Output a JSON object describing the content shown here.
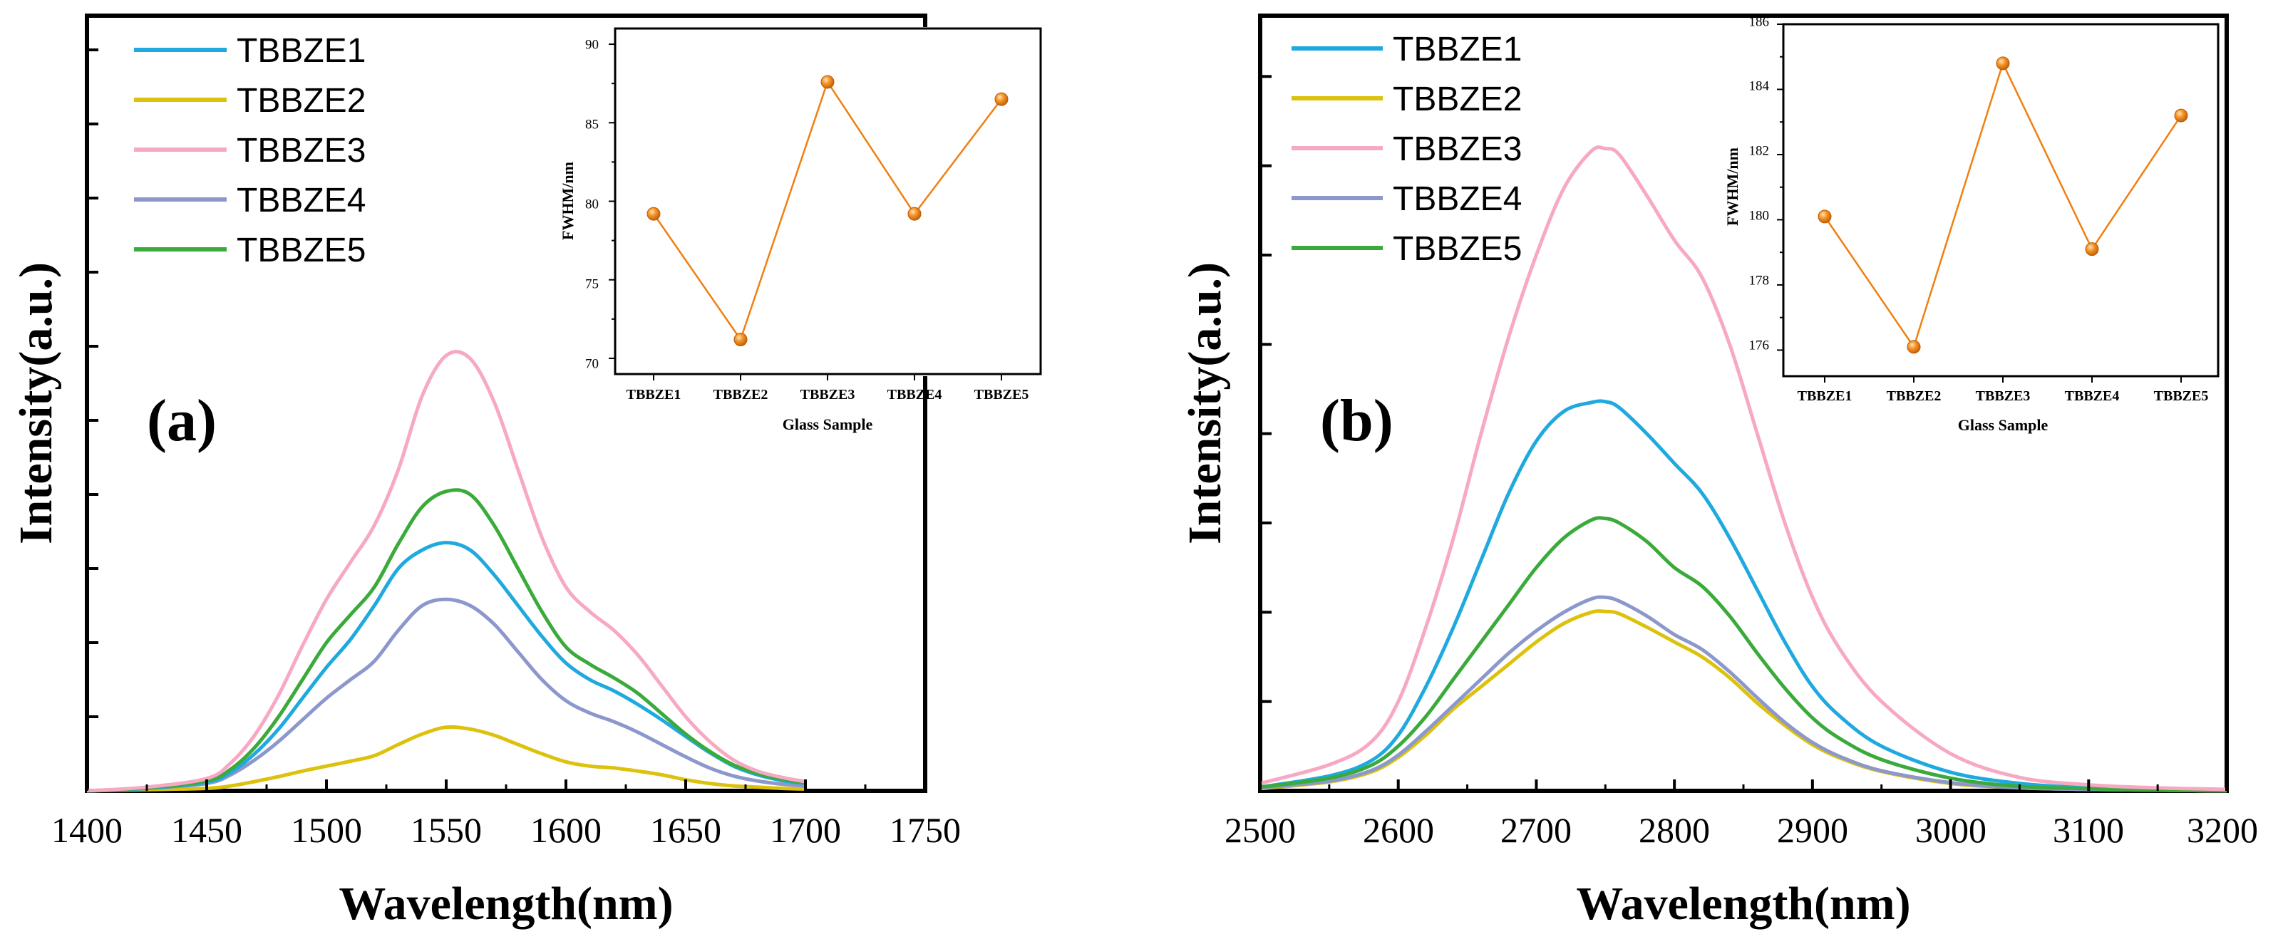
{
  "colors": {
    "TBBZE1": "#1fa9df",
    "TBBZE2": "#dcc20c",
    "TBBZE3": "#f7a9c4",
    "TBBZE4": "#8c97cc",
    "TBBZE5": "#3aaa3a",
    "inset_line": "#f07f10",
    "inset_marker": "#f08a1c"
  },
  "chart_data": [
    {
      "type": "line",
      "panel_label": "(a)",
      "xlabel": "Wavelength(nm)",
      "ylabel": "Intensity(a.u.)",
      "xlim": [
        1400,
        1750
      ],
      "ylim": [
        0,
        1
      ],
      "x_ticks": [
        "1400",
        "1450",
        "1500",
        "1550",
        "1600",
        "1650",
        "1700",
        "1750"
      ],
      "x": [
        1400,
        1425,
        1450,
        1460,
        1470,
        1480,
        1490,
        1500,
        1510,
        1520,
        1530,
        1540,
        1550,
        1560,
        1570,
        1580,
        1590,
        1600,
        1610,
        1620,
        1630,
        1640,
        1650,
        1660,
        1670,
        1680,
        1690,
        1700
      ],
      "series": [
        {
          "name": "TBBZE1",
          "values": [
            0,
            0.004,
            0.014,
            0.03,
            0.06,
            0.1,
            0.15,
            0.2,
            0.245,
            0.3,
            0.36,
            0.39,
            0.402,
            0.39,
            0.35,
            0.3,
            0.25,
            0.207,
            0.18,
            0.162,
            0.14,
            0.115,
            0.088,
            0.062,
            0.04,
            0.026,
            0.017,
            0.012
          ]
        },
        {
          "name": "TBBZE2",
          "values": [
            0,
            0.002,
            0.004,
            0.008,
            0.015,
            0.023,
            0.032,
            0.04,
            0.048,
            0.057,
            0.075,
            0.092,
            0.103,
            0.1,
            0.09,
            0.075,
            0.06,
            0.047,
            0.04,
            0.037,
            0.032,
            0.026,
            0.018,
            0.012,
            0.008,
            0.006,
            0.004,
            0.003
          ]
        },
        {
          "name": "TBBZE3",
          "values": [
            0,
            0.006,
            0.02,
            0.045,
            0.09,
            0.155,
            0.235,
            0.31,
            0.37,
            0.43,
            0.52,
            0.64,
            0.705,
            0.7,
            0.63,
            0.52,
            0.41,
            0.33,
            0.29,
            0.26,
            0.22,
            0.17,
            0.12,
            0.08,
            0.05,
            0.032,
            0.022,
            0.015
          ]
        },
        {
          "name": "TBBZE4",
          "values": [
            0,
            0.004,
            0.012,
            0.026,
            0.05,
            0.08,
            0.115,
            0.15,
            0.18,
            0.21,
            0.26,
            0.3,
            0.31,
            0.3,
            0.27,
            0.225,
            0.18,
            0.146,
            0.126,
            0.112,
            0.095,
            0.075,
            0.055,
            0.037,
            0.024,
            0.016,
            0.011,
            0.008
          ]
        },
        {
          "name": "TBBZE5",
          "values": [
            0,
            0.005,
            0.016,
            0.035,
            0.07,
            0.12,
            0.18,
            0.24,
            0.285,
            0.33,
            0.4,
            0.46,
            0.485,
            0.48,
            0.43,
            0.36,
            0.29,
            0.233,
            0.205,
            0.183,
            0.158,
            0.125,
            0.092,
            0.064,
            0.042,
            0.028,
            0.019,
            0.013
          ]
        }
      ],
      "inset": {
        "type": "line",
        "xlabel": "Glass Sample",
        "ylabel": "FWHM/nm",
        "categories": [
          "TBBZE1",
          "TBBZE2",
          "TBBZE3",
          "TBBZE4",
          "TBBZE5"
        ],
        "values": [
          79.2,
          71.2,
          87.6,
          79.2,
          86.5
        ],
        "ylim": [
          69,
          91
        ],
        "y_ticks": [
          "70",
          "75",
          "80",
          "85",
          "90"
        ]
      }
    },
    {
      "type": "line",
      "panel_label": "(b)",
      "xlabel": "Wavelength(nm)",
      "ylabel": "Intensity(a.u.)",
      "xlim": [
        2500,
        3200
      ],
      "ylim": [
        0,
        1
      ],
      "x_ticks": [
        "2500",
        "2600",
        "2700",
        "2800",
        "2900",
        "3000",
        "3100",
        "3200"
      ],
      "x": [
        2500,
        2550,
        2580,
        2600,
        2620,
        2640,
        2660,
        2680,
        2700,
        2720,
        2740,
        2750,
        2760,
        2780,
        2800,
        2820,
        2840,
        2860,
        2880,
        2900,
        2920,
        2950,
        3000,
        3050,
        3100,
        3150,
        3200
      ],
      "series": [
        {
          "name": "TBBZE1",
          "values": [
            0.005,
            0.02,
            0.04,
            0.075,
            0.14,
            0.22,
            0.31,
            0.4,
            0.47,
            0.51,
            0.522,
            0.523,
            0.515,
            0.48,
            0.44,
            0.4,
            0.34,
            0.27,
            0.2,
            0.14,
            0.1,
            0.06,
            0.025,
            0.01,
            0.004,
            0.002,
            0.001
          ]
        },
        {
          "name": "TBBZE2",
          "values": [
            0.003,
            0.012,
            0.025,
            0.045,
            0.075,
            0.11,
            0.14,
            0.17,
            0.2,
            0.225,
            0.24,
            0.241,
            0.238,
            0.22,
            0.2,
            0.18,
            0.152,
            0.118,
            0.088,
            0.062,
            0.044,
            0.026,
            0.01,
            0.004,
            0.002,
            0.001,
            0.0
          ]
        },
        {
          "name": "TBBZE3",
          "values": [
            0.01,
            0.035,
            0.065,
            0.12,
            0.22,
            0.34,
            0.48,
            0.61,
            0.72,
            0.81,
            0.86,
            0.863,
            0.855,
            0.8,
            0.74,
            0.69,
            0.6,
            0.48,
            0.36,
            0.26,
            0.19,
            0.12,
            0.05,
            0.018,
            0.008,
            0.004,
            0.002
          ]
        },
        {
          "name": "TBBZE4",
          "values": [
            0.004,
            0.013,
            0.027,
            0.048,
            0.08,
            0.115,
            0.15,
            0.185,
            0.215,
            0.24,
            0.258,
            0.26,
            0.255,
            0.235,
            0.21,
            0.19,
            0.16,
            0.125,
            0.092,
            0.065,
            0.046,
            0.027,
            0.011,
            0.004,
            0.002,
            0.001,
            0.0
          ]
        },
        {
          "name": "TBBZE5",
          "values": [
            0.005,
            0.017,
            0.034,
            0.06,
            0.1,
            0.15,
            0.2,
            0.25,
            0.3,
            0.34,
            0.364,
            0.366,
            0.36,
            0.335,
            0.3,
            0.275,
            0.235,
            0.185,
            0.138,
            0.098,
            0.07,
            0.042,
            0.017,
            0.006,
            0.003,
            0.001,
            0.0
          ]
        }
      ],
      "inset": {
        "type": "line",
        "xlabel": "Glass Sample",
        "ylabel": "FWHM/nm",
        "categories": [
          "TBBZE1",
          "TBBZE2",
          "TBBZE3",
          "TBBZE4",
          "TBBZE5"
        ],
        "values": [
          180.1,
          176.1,
          184.8,
          179.1,
          183.2
        ],
        "ylim": [
          175.2,
          186
        ],
        "y_ticks": [
          "176",
          "178",
          "180",
          "182",
          "184",
          "186"
        ]
      }
    }
  ]
}
